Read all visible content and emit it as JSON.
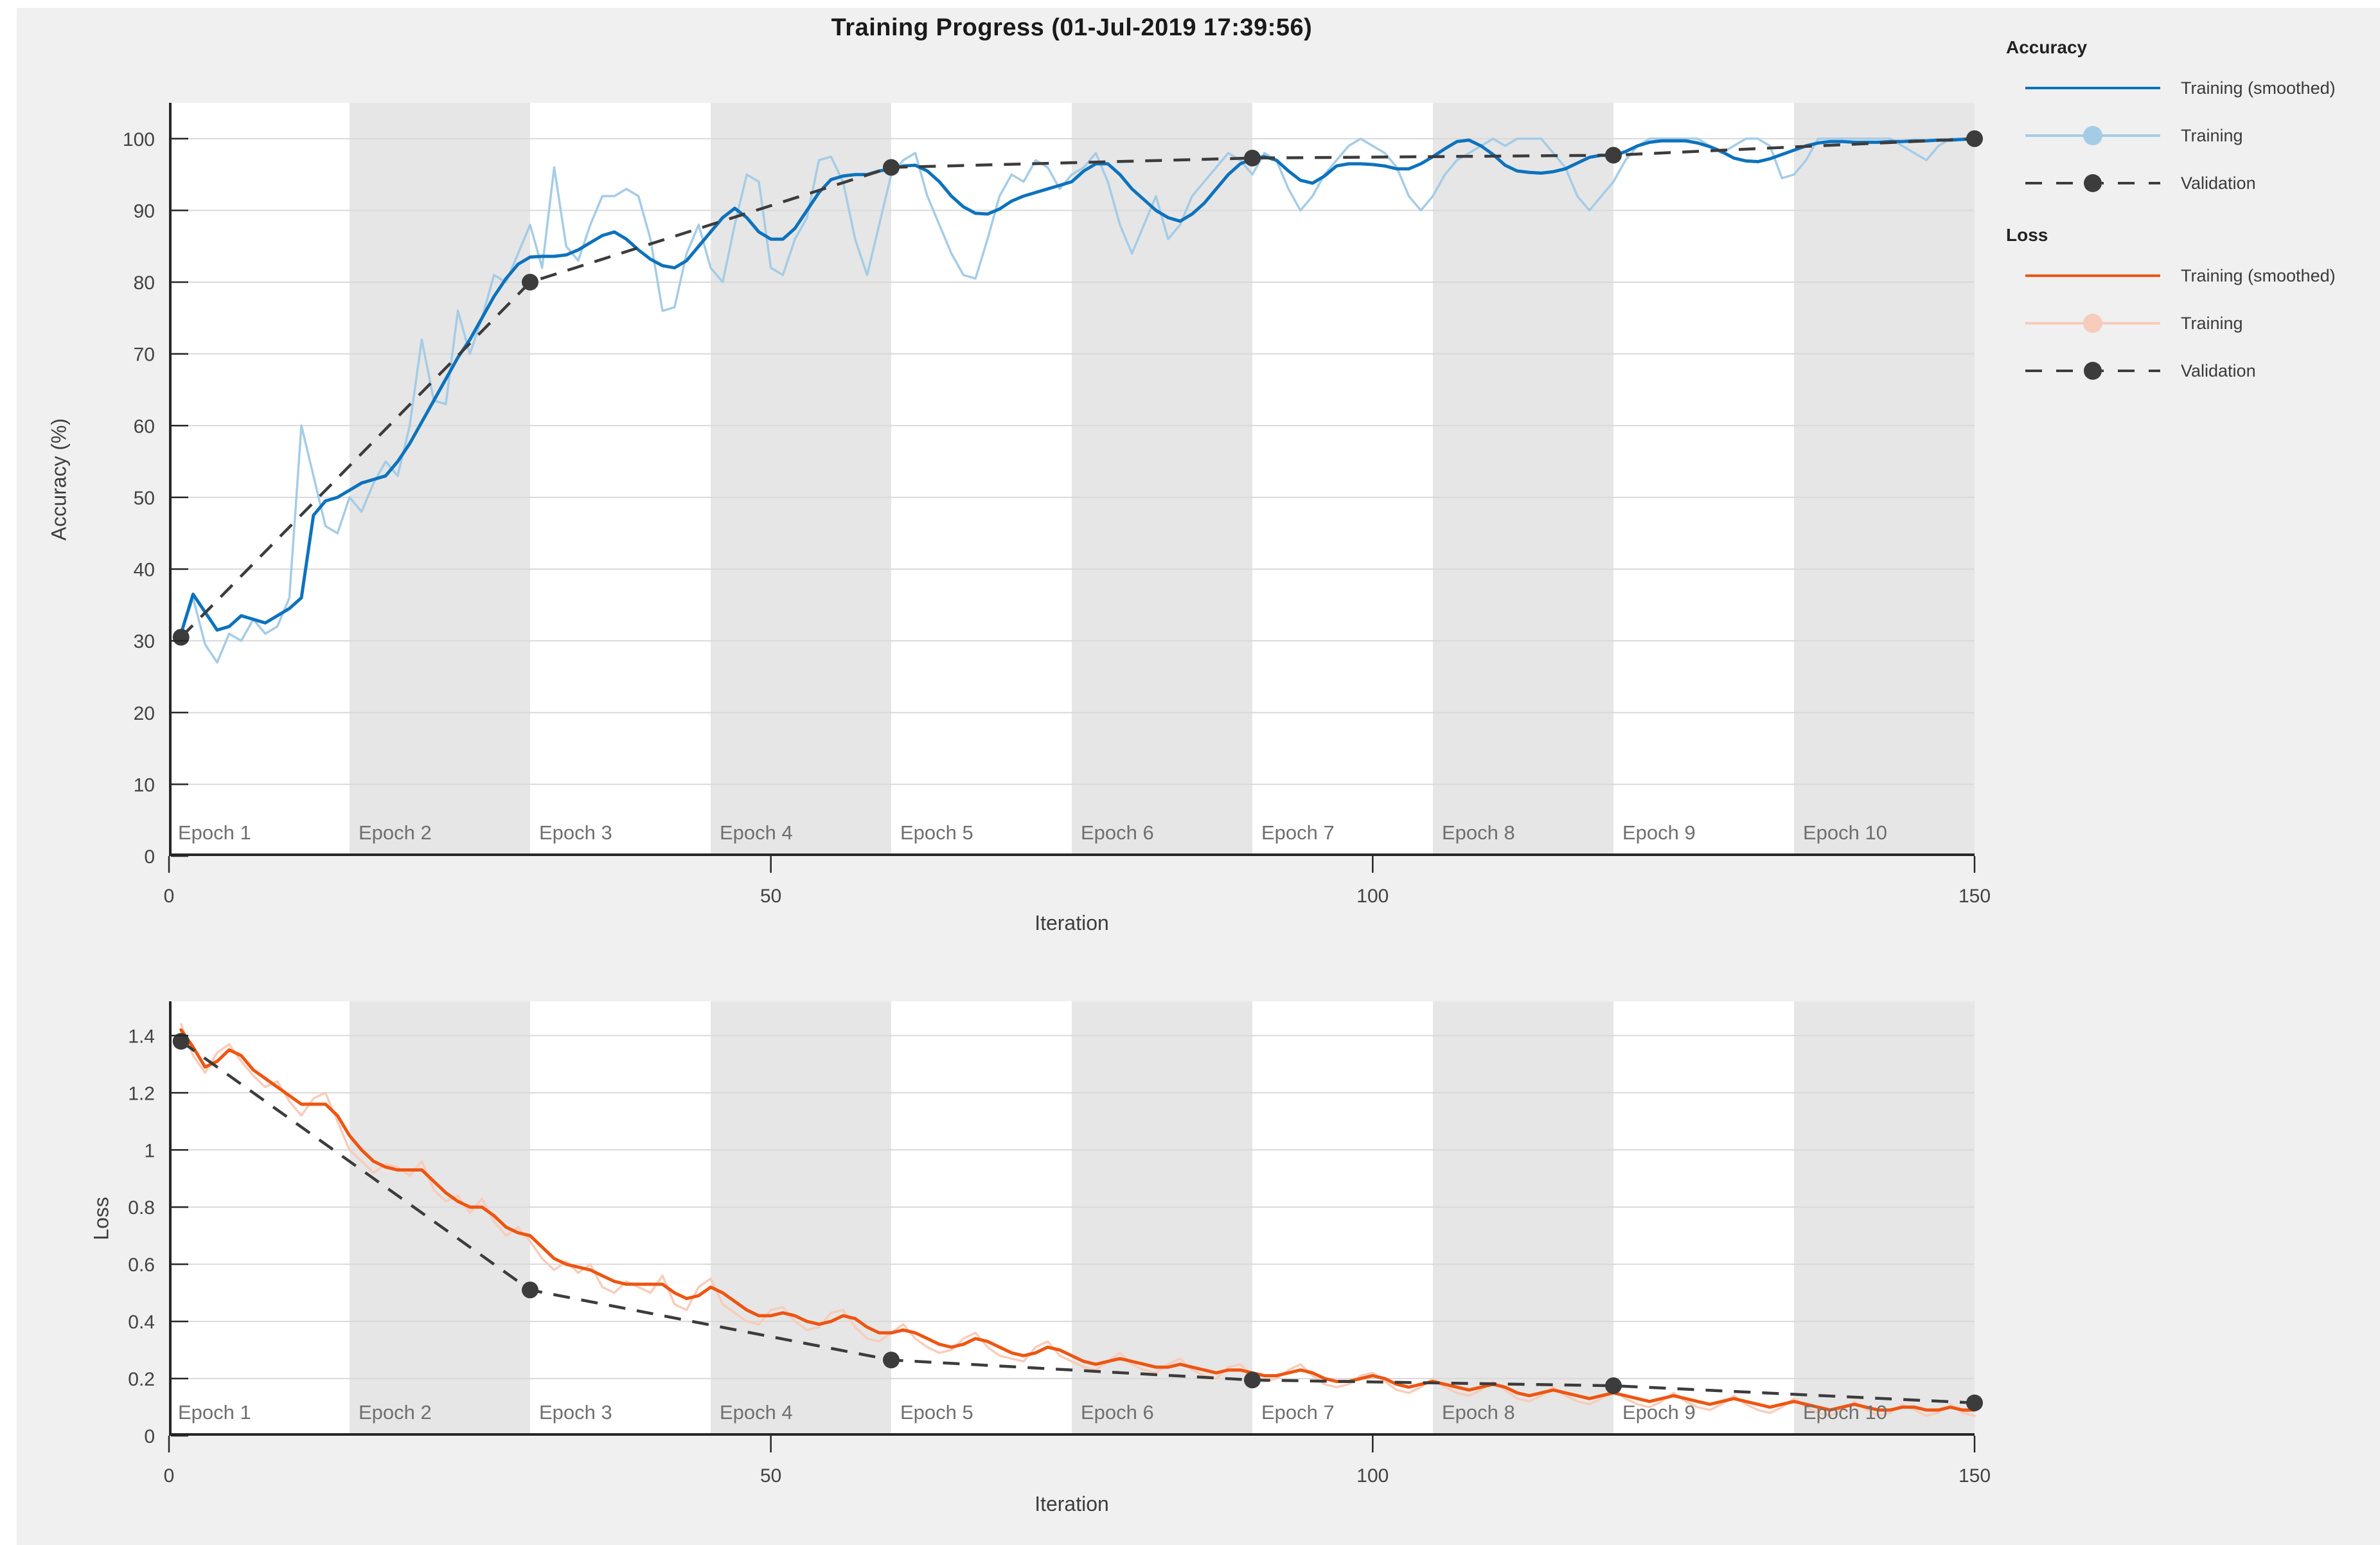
{
  "title": "Training Progress (01-Jul-2019 17:39:56)",
  "colors": {
    "acc_smooth": "#0D72BD",
    "acc_raw": "#A5CCE6",
    "loss_smooth": "#EE5511",
    "loss_raw": "#F8CCBB",
    "validation": "#3C3C3C",
    "band_white": "#FFFFFF",
    "band_gray": "#E6E6E6",
    "grid": "#D9D9D9",
    "axis": "#262626",
    "tick_text": "#424242",
    "epoch_text": "#6F6F6F",
    "background": "#F0F0F0"
  },
  "legend": {
    "groups": [
      {
        "heading": "Accuracy",
        "items": [
          {
            "label": "Training (smoothed)"
          },
          {
            "label": "Training"
          },
          {
            "label": "Validation"
          }
        ]
      },
      {
        "heading": "Loss",
        "items": [
          {
            "label": "Training (smoothed)"
          },
          {
            "label": "Training"
          },
          {
            "label": "Validation"
          }
        ]
      }
    ]
  },
  "chart_data": [
    {
      "id": "accuracy",
      "type": "line",
      "ylabel": "Accuracy (%)",
      "xlabel": "Iteration",
      "xlim": [
        0,
        150
      ],
      "ylim": [
        0,
        105
      ],
      "xticks": [
        0,
        50,
        100,
        150
      ],
      "yticks": [
        0,
        10,
        20,
        30,
        40,
        50,
        60,
        70,
        80,
        90,
        100
      ],
      "ytick_labels": [
        "0",
        "10",
        "20",
        "30",
        "40",
        "50",
        "60",
        "70",
        "80",
        "90",
        "100"
      ],
      "grid": true,
      "legend_position": "right-panel",
      "epoch_bands": {
        "iterations_per_epoch": 15,
        "labels": [
          "Epoch 1",
          "Epoch 2",
          "Epoch 3",
          "Epoch 4",
          "Epoch 5",
          "Epoch 6",
          "Epoch 7",
          "Epoch 8",
          "Epoch 9",
          "Epoch 10"
        ]
      },
      "series": [
        {
          "key": "training_raw",
          "name": "Training",
          "color": "acc_raw",
          "style": "line",
          "x_start": 1,
          "x_step": 1,
          "y": [
            31,
            36,
            29.5,
            27,
            31,
            30,
            33,
            31,
            32,
            36,
            60,
            53,
            46,
            45,
            50,
            48,
            52,
            55,
            53,
            60,
            72,
            63.5,
            63,
            76,
            70,
            75,
            81,
            80,
            84,
            88,
            82,
            96,
            85,
            83,
            88,
            92,
            92,
            93,
            92,
            86,
            76,
            76.5,
            84,
            88,
            82,
            80,
            88,
            95,
            94,
            82,
            81,
            86,
            89,
            97,
            97.5,
            94,
            86,
            81,
            88,
            95,
            97,
            98,
            92,
            88,
            84,
            81,
            80.5,
            86,
            92,
            95,
            94,
            97,
            96,
            93,
            95,
            96,
            98,
            94,
            88,
            84,
            88,
            92,
            86,
            88,
            92,
            94,
            96,
            98,
            97,
            95,
            98,
            97,
            93,
            90,
            92,
            95,
            97,
            99,
            100,
            99,
            98,
            96,
            92,
            90,
            92,
            95,
            97,
            98,
            99,
            100,
            99,
            100,
            100,
            100,
            98,
            96,
            92,
            90,
            92,
            94,
            97,
            99,
            100,
            100,
            100,
            100,
            100,
            99,
            98,
            99,
            100,
            100,
            99,
            94.5,
            95,
            97,
            100,
            100,
            100,
            100,
            100,
            100,
            100,
            99,
            98,
            97,
            99,
            100,
            100,
            100
          ]
        },
        {
          "key": "training_smoothed",
          "name": "Training (smoothed)",
          "color": "acc_smooth",
          "style": "line",
          "x_start": 1,
          "x_step": 1,
          "y": [
            31,
            36.5,
            34,
            31.5,
            32,
            33.5,
            33,
            32.5,
            33.5,
            34.5,
            36,
            47.5,
            49.5,
            50,
            51,
            52,
            52.5,
            53,
            55,
            57.5,
            60.5,
            63.5,
            66.5,
            69.5,
            72,
            75,
            78,
            80.5,
            82.5,
            83.5,
            83.6,
            83.6,
            83.8,
            84.5,
            85.5,
            86.5,
            87,
            86,
            84.5,
            83.2,
            82.3,
            82,
            83,
            85,
            87,
            89,
            90.3,
            89,
            87,
            86,
            86,
            87.5,
            90,
            92.5,
            94.3,
            94.8,
            95,
            95,
            95.5,
            95.8,
            96.2,
            96.3,
            95.5,
            94,
            92,
            90.5,
            89.6,
            89.5,
            90.2,
            91.3,
            92,
            92.5,
            93,
            93.5,
            94,
            95.5,
            96.5,
            96.5,
            95,
            93,
            91.5,
            90,
            89,
            88.5,
            89.5,
            91,
            93,
            95,
            96.5,
            97.2,
            97.5,
            97,
            95.5,
            94.2,
            93.8,
            94.8,
            96.2,
            96.5,
            96.5,
            96.4,
            96.2,
            95.8,
            95.8,
            96.5,
            97.5,
            98.6,
            99.6,
            99.8,
            99,
            97.8,
            96.3,
            95.5,
            95.3,
            95.2,
            95.4,
            95.8,
            96.6,
            97.4,
            97.7,
            97.6,
            98.2,
            99,
            99.5,
            99.7,
            99.7,
            99.7,
            99.4,
            98.9,
            98.2,
            97.3,
            96.9,
            96.8,
            97.2,
            97.8,
            98.4,
            99,
            99.4,
            99.6,
            99.6,
            99.5,
            99.5,
            99.5,
            99.6,
            99.6,
            99.7,
            99.7,
            99.8,
            99.8,
            99.9,
            100
          ]
        },
        {
          "key": "validation",
          "name": "Validation",
          "color": "validation",
          "style": "dashed-marker",
          "x": [
            1,
            30,
            60,
            90,
            120,
            150
          ],
          "y": [
            30.5,
            80,
            96,
            97.3,
            97.7,
            100
          ]
        }
      ]
    },
    {
      "id": "loss",
      "type": "line",
      "ylabel": "Loss",
      "xlabel": "Iteration",
      "xlim": [
        0,
        150
      ],
      "ylim": [
        0,
        1.52
      ],
      "xticks": [
        0,
        50,
        100,
        150
      ],
      "yticks": [
        0,
        0.2,
        0.4,
        0.6,
        0.8,
        1,
        1.2,
        1.4
      ],
      "ytick_labels": [
        "0",
        "0.2",
        "0.4",
        "0.6",
        "0.8",
        "1",
        "1.2",
        "1.4"
      ],
      "grid": true,
      "legend_position": "right-panel",
      "epoch_bands": {
        "iterations_per_epoch": 15,
        "labels": [
          "Epoch 1",
          "Epoch 2",
          "Epoch 3",
          "Epoch 4",
          "Epoch 5",
          "Epoch 6",
          "Epoch 7",
          "Epoch 8",
          "Epoch 9",
          "Epoch 10"
        ]
      },
      "series": [
        {
          "key": "training_raw",
          "name": "Training",
          "color": "loss_raw",
          "style": "line",
          "x_start": 1,
          "x_step": 1,
          "y": [
            1.44,
            1.33,
            1.27,
            1.34,
            1.37,
            1.31,
            1.26,
            1.22,
            1.24,
            1.17,
            1.12,
            1.18,
            1.2,
            1.1,
            1,
            0.96,
            0.92,
            0.95,
            0.94,
            0.91,
            0.96,
            0.86,
            0.82,
            0.84,
            0.78,
            0.83,
            0.75,
            0.7,
            0.73,
            0.68,
            0.62,
            0.58,
            0.61,
            0.57,
            0.6,
            0.52,
            0.5,
            0.54,
            0.52,
            0.5,
            0.56,
            0.46,
            0.44,
            0.52,
            0.55,
            0.46,
            0.43,
            0.4,
            0.39,
            0.44,
            0.45,
            0.4,
            0.37,
            0.38,
            0.43,
            0.44,
            0.38,
            0.34,
            0.33,
            0.36,
            0.39,
            0.34,
            0.31,
            0.29,
            0.3,
            0.34,
            0.36,
            0.31,
            0.28,
            0.27,
            0.26,
            0.31,
            0.33,
            0.28,
            0.26,
            0.24,
            0.23,
            0.26,
            0.29,
            0.25,
            0.23,
            0.22,
            0.25,
            0.27,
            0.23,
            0.21,
            0.2,
            0.24,
            0.25,
            0.21,
            0.19,
            0.2,
            0.23,
            0.25,
            0.21,
            0.18,
            0.17,
            0.18,
            0.21,
            0.22,
            0.19,
            0.16,
            0.15,
            0.17,
            0.2,
            0.17,
            0.15,
            0.14,
            0.16,
            0.19,
            0.16,
            0.13,
            0.12,
            0.14,
            0.17,
            0.14,
            0.12,
            0.11,
            0.13,
            0.16,
            0.13,
            0.11,
            0.1,
            0.12,
            0.15,
            0.12,
            0.1,
            0.09,
            0.11,
            0.14,
            0.11,
            0.09,
            0.08,
            0.1,
            0.13,
            0.1,
            0.08,
            0.07,
            0.09,
            0.12,
            0.09,
            0.07,
            0.08,
            0.11,
            0.09,
            0.07,
            0.08,
            0.11,
            0.08,
            0.07
          ]
        },
        {
          "key": "training_smoothed",
          "name": "Training (smoothed)",
          "color": "loss_smooth",
          "style": "line",
          "x_start": 1,
          "x_step": 1,
          "y": [
            1.42,
            1.36,
            1.29,
            1.31,
            1.35,
            1.33,
            1.28,
            1.25,
            1.22,
            1.19,
            1.16,
            1.16,
            1.16,
            1.12,
            1.05,
            1,
            0.96,
            0.94,
            0.93,
            0.93,
            0.93,
            0.89,
            0.85,
            0.82,
            0.8,
            0.8,
            0.77,
            0.73,
            0.71,
            0.7,
            0.66,
            0.62,
            0.6,
            0.59,
            0.58,
            0.56,
            0.54,
            0.53,
            0.53,
            0.53,
            0.53,
            0.5,
            0.48,
            0.49,
            0.52,
            0.5,
            0.47,
            0.44,
            0.42,
            0.42,
            0.43,
            0.42,
            0.4,
            0.39,
            0.4,
            0.42,
            0.41,
            0.38,
            0.36,
            0.36,
            0.37,
            0.36,
            0.34,
            0.32,
            0.31,
            0.32,
            0.34,
            0.33,
            0.31,
            0.29,
            0.28,
            0.29,
            0.31,
            0.3,
            0.28,
            0.26,
            0.25,
            0.26,
            0.27,
            0.26,
            0.25,
            0.24,
            0.24,
            0.25,
            0.24,
            0.23,
            0.22,
            0.23,
            0.23,
            0.22,
            0.21,
            0.21,
            0.22,
            0.23,
            0.22,
            0.2,
            0.19,
            0.19,
            0.2,
            0.21,
            0.2,
            0.18,
            0.17,
            0.18,
            0.19,
            0.18,
            0.17,
            0.16,
            0.17,
            0.18,
            0.17,
            0.15,
            0.14,
            0.15,
            0.16,
            0.15,
            0.14,
            0.13,
            0.14,
            0.15,
            0.14,
            0.13,
            0.12,
            0.13,
            0.14,
            0.13,
            0.12,
            0.11,
            0.12,
            0.13,
            0.12,
            0.11,
            0.1,
            0.11,
            0.12,
            0.11,
            0.1,
            0.09,
            0.1,
            0.11,
            0.1,
            0.09,
            0.09,
            0.1,
            0.1,
            0.09,
            0.09,
            0.1,
            0.09,
            0.09
          ]
        },
        {
          "key": "validation",
          "name": "Validation",
          "color": "validation",
          "style": "dashed-marker",
          "x": [
            1,
            30,
            60,
            90,
            120,
            150
          ],
          "y": [
            1.38,
            0.51,
            0.265,
            0.195,
            0.175,
            0.115
          ]
        }
      ]
    }
  ]
}
